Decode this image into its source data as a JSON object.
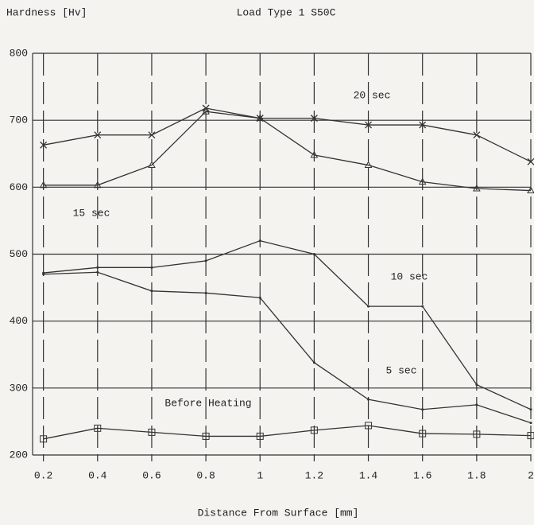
{
  "chart_data": {
    "type": "line",
    "title": "Load Type 1 S50C",
    "y_label": "Hardness [Hv]",
    "x_label": "Distance From Surface [mm]",
    "x": [
      0.2,
      0.4,
      0.6,
      0.8,
      1,
      1.2,
      1.4,
      1.6,
      1.8,
      2
    ],
    "xlim": [
      0.16,
      2
    ],
    "xticks": [
      0.2,
      0.4,
      0.6,
      0.8,
      1,
      1.2,
      1.4,
      1.6,
      1.8,
      2
    ],
    "ylim": [
      200,
      800
    ],
    "yticks": [
      200,
      300,
      400,
      500,
      600,
      700,
      800
    ],
    "grid": true,
    "series": [
      {
        "name": "20 sec",
        "color": "#333333",
        "marker": "x",
        "values": [
          663,
          678,
          678,
          718,
          703,
          703,
          693,
          693,
          678,
          638
        ]
      },
      {
        "name": "15 sec",
        "color": "#333333",
        "marker": "triangle",
        "values": [
          603,
          603,
          633,
          713,
          703,
          648,
          633,
          608,
          598,
          595
        ]
      },
      {
        "name": "10 sec",
        "color": "#333333",
        "marker": "none",
        "values": [
          472,
          480,
          480,
          490,
          520,
          500,
          422,
          422,
          305,
          268
        ]
      },
      {
        "name": "5 sec",
        "color": "#333333",
        "marker": "none",
        "values": [
          470,
          473,
          445,
          442,
          435,
          338,
          283,
          268,
          275,
          248
        ]
      },
      {
        "name": "Before Heating",
        "color": "#333333",
        "marker": "square",
        "values": [
          224,
          240,
          234,
          228,
          228,
          237,
          244,
          232,
          231,
          229
        ]
      }
    ]
  }
}
